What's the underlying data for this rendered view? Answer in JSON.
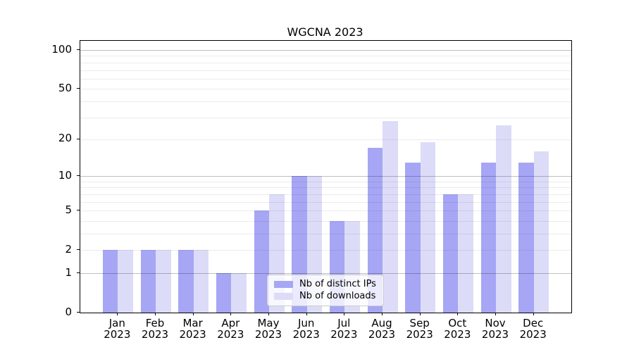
{
  "title": "WGCNA 2023",
  "chart_data": {
    "type": "bar",
    "title": "WGCNA 2023",
    "categories": [
      "Jan",
      "Feb",
      "Mar",
      "Apr",
      "May",
      "Jun",
      "Jul",
      "Aug",
      "Sep",
      "Oct",
      "Nov",
      "Dec"
    ],
    "year_label": "2023",
    "series": [
      {
        "name": "Nb of distinct IPs",
        "color": "#a6a6f5",
        "values": [
          2,
          2,
          2,
          1,
          5,
          10,
          4,
          17,
          13,
          7,
          13,
          13
        ]
      },
      {
        "name": "Nb of downloads",
        "color": "#dcdcf8",
        "values": [
          2,
          2,
          2,
          1,
          7,
          10,
          4,
          28,
          19,
          7,
          26,
          16
        ]
      }
    ],
    "y_scale": "log1p",
    "y_axis_ticks": [
      0,
      1,
      2,
      5,
      10,
      20,
      50,
      100
    ],
    "y_grid_major": [
      1,
      10,
      100
    ],
    "y_grid_minor": [
      2,
      3,
      4,
      5,
      6,
      7,
      8,
      9,
      20,
      30,
      40,
      50,
      60,
      70,
      80,
      90
    ],
    "y_range": [
      0,
      118
    ],
    "grid": true,
    "legend_position": "lower center",
    "xlabel": "",
    "ylabel": ""
  },
  "colors": {
    "bar_distinct_ips": "#a6a6f5",
    "bar_downloads": "#dcdcf8",
    "grid_major": "rgba(0,0,0,0.25)",
    "grid_minor": "rgba(0,0,0,0.075)",
    "spine": "#000000",
    "legend_border": "#cccccc",
    "legend_background": "rgba(255,255,255,0.78)"
  }
}
